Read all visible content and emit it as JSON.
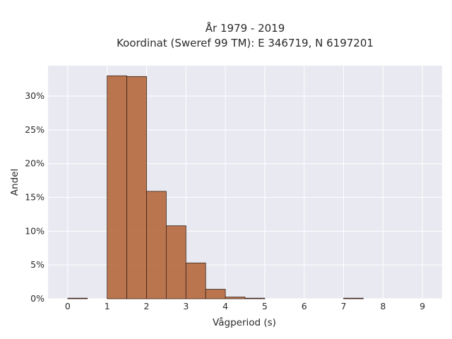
{
  "title_line1": "År 1979 - 2019",
  "title_line2": "Koordinat (Sweref 99 TM): E 346719, N 6197201",
  "chart_data": {
    "type": "bar",
    "xlabel": "Vågperiod (s)",
    "ylabel": "Andel",
    "xlim": [
      -0.5,
      9.5
    ],
    "ylim": [
      0,
      34.5
    ],
    "x_ticks": [
      0,
      1,
      2,
      3,
      4,
      5,
      6,
      7,
      8,
      9
    ],
    "y_ticks": [
      0,
      5,
      10,
      15,
      20,
      25,
      30
    ],
    "y_tick_labels": [
      "0%",
      "5%",
      "10%",
      "15%",
      "20%",
      "25%",
      "30%"
    ],
    "grid": true,
    "bar_color": "#b5683d",
    "bar_edge_color": "#3a2418",
    "plot_background": "#e9e9f1",
    "bins": [
      {
        "x0": 0.0,
        "x1": 0.5,
        "value": 0.05
      },
      {
        "x0": 1.0,
        "x1": 1.5,
        "value": 33.0
      },
      {
        "x0": 1.5,
        "x1": 2.0,
        "value": 32.9
      },
      {
        "x0": 2.0,
        "x1": 2.5,
        "value": 15.9
      },
      {
        "x0": 2.5,
        "x1": 3.0,
        "value": 10.8
      },
      {
        "x0": 3.0,
        "x1": 3.5,
        "value": 5.3
      },
      {
        "x0": 3.5,
        "x1": 4.0,
        "value": 1.4
      },
      {
        "x0": 4.0,
        "x1": 4.5,
        "value": 0.25
      },
      {
        "x0": 4.5,
        "x1": 5.0,
        "value": 0.05
      },
      {
        "x0": 7.0,
        "x1": 7.5,
        "value": 0.05
      }
    ]
  }
}
